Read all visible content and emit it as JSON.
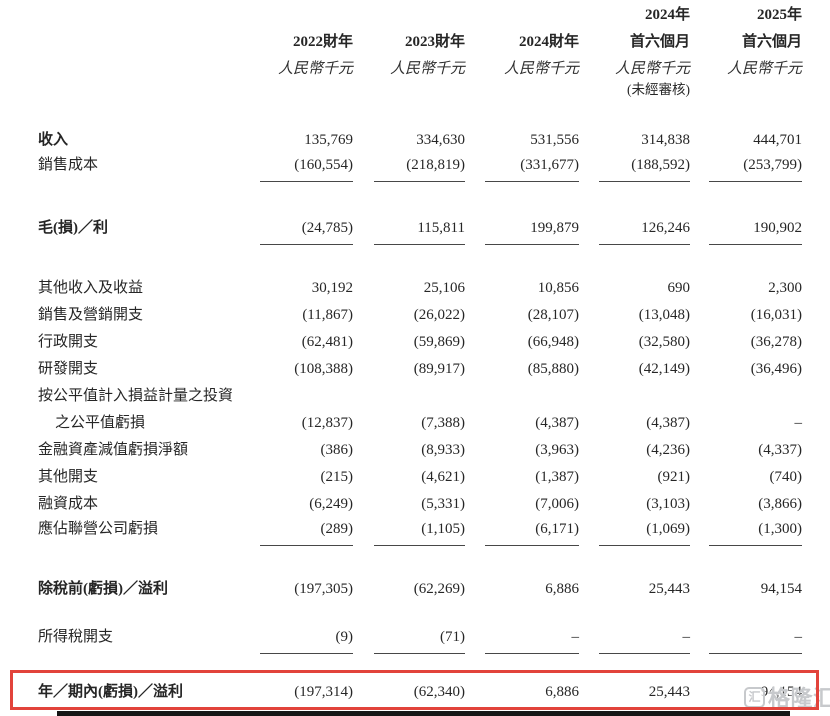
{
  "styles": {
    "highlight_border": "#e2433b",
    "watermark_color": "#c7c9cc",
    "text_color": "#262626"
  },
  "watermark": {
    "text": "格隆汇",
    "logo_char": "汇"
  },
  "table": {
    "columns": [
      {
        "year": "",
        "period": "2022財年",
        "unit": "人民幣千元",
        "note": ""
      },
      {
        "year": "",
        "period": "2023財年",
        "unit": "人民幣千元",
        "note": ""
      },
      {
        "year": "",
        "period": "2024財年",
        "unit": "人民幣千元",
        "note": ""
      },
      {
        "year": "2024年",
        "period": "首六個月",
        "unit": "人民幣千元",
        "note": "(未經審核)"
      },
      {
        "year": "2025年",
        "period": "首六個月",
        "unit": "人民幣千元",
        "note": ""
      }
    ],
    "rows": [
      {
        "label": "收入",
        "bold": true,
        "gap": 24,
        "values": [
          "135,769",
          "334,630",
          "531,556",
          "314,838",
          "444,701"
        ]
      },
      {
        "label": "銷售成本",
        "underline": true,
        "values": [
          "(160,554)",
          "(218,819)",
          "(331,677)",
          "(188,592)",
          "(253,799)"
        ]
      },
      {
        "label": "毛(損)／利",
        "bold": true,
        "underline": true,
        "gap": 31,
        "values": [
          "(24,785)",
          "115,811",
          "199,879",
          "126,246",
          "190,902"
        ]
      },
      {
        "label": "其他收入及收益",
        "gap": 26,
        "values": [
          "30,192",
          "25,106",
          "10,856",
          "690",
          "2,300"
        ]
      },
      {
        "label": "銷售及營銷開支",
        "values": [
          "(11,867)",
          "(26,022)",
          "(28,107)",
          "(13,048)",
          "(16,031)"
        ]
      },
      {
        "label": "行政開支",
        "values": [
          "(62,481)",
          "(59,869)",
          "(66,948)",
          "(32,580)",
          "(36,278)"
        ]
      },
      {
        "label": "研發開支",
        "values": [
          "(108,388)",
          "(89,917)",
          "(85,880)",
          "(42,149)",
          "(36,496)"
        ]
      },
      {
        "label": "按公平值計入損益計量之投資",
        "values": [
          "",
          "",
          "",
          "",
          ""
        ]
      },
      {
        "label": "之公平值虧損",
        "indent": true,
        "values": [
          "(12,837)",
          "(7,388)",
          "(4,387)",
          "(4,387)",
          "–"
        ]
      },
      {
        "label": "金融資產減值虧損淨額",
        "values": [
          "(386)",
          "(8,933)",
          "(3,963)",
          "(4,236)",
          "(4,337)"
        ]
      },
      {
        "label": "其他開支",
        "values": [
          "(215)",
          "(4,621)",
          "(1,387)",
          "(921)",
          "(740)"
        ]
      },
      {
        "label": "融資成本",
        "values": [
          "(6,249)",
          "(5,331)",
          "(7,006)",
          "(3,103)",
          "(3,866)"
        ]
      },
      {
        "label": "應佔聯營公司虧損",
        "underline": true,
        "values": [
          "(289)",
          "(1,105)",
          "(6,171)",
          "(1,069)",
          "(1,300)"
        ]
      },
      {
        "label": "除稅前(虧損)／溢利",
        "bold": true,
        "gap": 26,
        "values": [
          "(197,305)",
          "(62,269)",
          "6,886",
          "25,443",
          "94,154"
        ]
      },
      {
        "label": "所得稅開支",
        "underline": true,
        "gap": 23,
        "values": [
          "(9)",
          "(71)",
          "–",
          "–",
          "–"
        ]
      },
      {
        "label": "年／期內(虧損)／溢利",
        "bold": true,
        "boxed": true,
        "gap": 16,
        "values": [
          "(197,314)",
          "(62,340)",
          "6,886",
          "25,443",
          "94,154"
        ]
      }
    ]
  }
}
